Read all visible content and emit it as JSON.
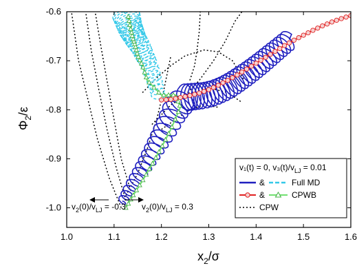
{
  "chart_data": {
    "type": "line",
    "axes": {
      "xlim": [
        1.0,
        1.6
      ],
      "ylim": [
        -1.04,
        -0.6
      ],
      "xticks": [
        "1.0",
        "1.1",
        "1.2",
        "1.3",
        "1.4",
        "1.5",
        "1.6"
      ],
      "yticks": [
        "-1.0",
        "-0.9",
        "-0.8",
        "-0.7",
        "-0.6"
      ],
      "xlabel_main": "x",
      "xlabel_sub": "2",
      "xlabel_tail": "/σ",
      "ylabel_main": "Φ",
      "ylabel_sub": "2",
      "ylabel_tail": "/ε",
      "grid": false
    },
    "legend": {
      "placement": "bottom-right",
      "header": "v₁(t) = 0, v₃(t)/v",
      "header_sub": "LJ",
      "header_tail": " = 0.01",
      "rows": [
        {
          "amp": "&",
          "label": "Full MD"
        },
        {
          "amp": "&",
          "label": "CPWB"
        },
        {
          "amp": "",
          "label": "CPW"
        }
      ]
    },
    "annotations": [
      {
        "main": "v",
        "sub1": "2",
        "mid": "(0)/v",
        "sub2": "LJ",
        "tail": " = -0.3",
        "arrow": "left"
      },
      {
        "main": "v",
        "sub1": "2",
        "mid": "(0)/v",
        "sub2": "LJ",
        "tail": " = 0.3",
        "arrow": "right"
      }
    ],
    "colors": {
      "md_right": "#1f1fbf",
      "md_left": "#33c8e8",
      "cpwb_right": "#e02020",
      "cpwb_left": "#70e070",
      "cpwb_right_marker_fill": "#f5d0d0",
      "cpw": "#000000"
    },
    "series": [
      {
        "name": "Full MD",
        "color": "#1f1fbf",
        "x": [
          1.115,
          1.13,
          1.15,
          1.17,
          1.19,
          1.21,
          1.23,
          1.25,
          1.27,
          1.29,
          1.31,
          1.33,
          1.35,
          1.37,
          1.39,
          1.41,
          1.43,
          1.45,
          1.47
        ],
        "y": [
          -0.99,
          -0.965,
          -0.935,
          -0.905,
          -0.872,
          -0.838,
          -0.8,
          -0.775,
          -0.773,
          -0.771,
          -0.766,
          -0.758,
          -0.747,
          -0.734,
          -0.72,
          -0.705,
          -0.689,
          -0.673,
          -0.657
        ]
      },
      {
        "name": "Full MD",
        "color": "#33c8e8",
        "x": [
          1.195,
          1.185,
          1.175,
          1.165,
          1.155,
          1.145,
          1.14,
          1.135,
          1.13,
          1.125
        ],
        "y": [
          -0.775,
          -0.74,
          -0.71,
          -0.69,
          -0.67,
          -0.655,
          -0.645,
          -0.635,
          -0.62,
          -0.605
        ]
      },
      {
        "name": "CPWB",
        "color": "#e02020",
        "x": [
          1.2,
          1.22,
          1.24,
          1.26,
          1.28,
          1.3,
          1.32,
          1.34,
          1.36,
          1.38,
          1.4,
          1.42,
          1.44,
          1.46,
          1.48,
          1.5,
          1.52,
          1.54,
          1.56,
          1.58,
          1.6
        ],
        "y": [
          -0.78,
          -0.779,
          -0.775,
          -0.771,
          -0.766,
          -0.759,
          -0.75,
          -0.74,
          -0.729,
          -0.717,
          -0.705,
          -0.693,
          -0.681,
          -0.669,
          -0.658,
          -0.648,
          -0.638,
          -0.629,
          -0.621,
          -0.614,
          -0.608
        ]
      },
      {
        "name": "CPWB",
        "color": "#70e070",
        "x": [
          1.125,
          1.14,
          1.16,
          1.18,
          1.2,
          1.22,
          1.24,
          1.23,
          1.2,
          1.17,
          1.16,
          1.15,
          1.145,
          1.14,
          1.135,
          1.13
        ],
        "y": [
          -1.0,
          -0.975,
          -0.945,
          -0.912,
          -0.877,
          -0.84,
          -0.795,
          -0.77,
          -0.77,
          -0.74,
          -0.71,
          -0.69,
          -0.67,
          -0.655,
          -0.635,
          -0.61
        ]
      },
      {
        "name": "CPW",
        "color": "#000000",
        "dashed": true,
        "curves": [
          {
            "x": [
              1.115,
              1.09,
              1.065,
              1.045,
              1.025,
              1.01
            ],
            "y": [
              -1.0,
              -0.94,
              -0.86,
              -0.78,
              -0.7,
              -0.6
            ]
          },
          {
            "x": [
              1.125,
              1.105,
              1.085,
              1.068,
              1.052,
              1.04
            ],
            "y": [
              -0.985,
              -0.92,
              -0.84,
              -0.76,
              -0.68,
              -0.6
            ]
          },
          {
            "x": [
              1.135,
              1.115,
              1.1,
              1.085,
              1.072,
              1.06
            ],
            "y": [
              -0.965,
              -0.9,
              -0.82,
              -0.74,
              -0.67,
              -0.6
            ]
          },
          {
            "x": [
              1.125,
              1.15,
              1.17,
              1.19,
              1.205,
              1.22
            ],
            "y": [
              -0.975,
              -0.93,
              -0.88,
              -0.82,
              -0.76,
              -0.69
            ]
          },
          {
            "x": [
              1.16,
              1.19,
              1.22,
              1.25,
              1.29,
              1.32,
              1.35,
              1.375
            ],
            "y": [
              -0.765,
              -0.735,
              -0.71,
              -0.69,
              -0.678,
              -0.682,
              -0.7,
              -0.74
            ]
          },
          {
            "x": [
              1.18,
              1.22,
              1.26,
              1.3,
              1.34,
              1.37
            ],
            "y": [
              -0.83,
              -0.79,
              -0.765,
              -0.755,
              -0.765,
              -0.785
            ]
          },
          {
            "x": [
              1.2,
              1.23,
              1.26,
              1.29,
              1.32
            ],
            "y": [
              -0.84,
              -0.82,
              -0.8,
              -0.79,
              -0.795
            ]
          },
          {
            "x": [
              1.25,
              1.28,
              1.31,
              1.335,
              1.355,
              1.37
            ],
            "y": [
              -0.77,
              -0.74,
              -0.7,
              -0.66,
              -0.62,
              -0.6
            ]
          },
          {
            "x": [
              1.26,
              1.27,
              1.275,
              1.28,
              1.282
            ],
            "y": [
              -0.74,
              -0.71,
              -0.68,
              -0.64,
              -0.6
            ]
          }
        ]
      }
    ]
  }
}
